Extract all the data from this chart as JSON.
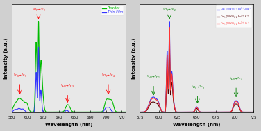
{
  "left_plot": {
    "xlim": [
      580,
      725
    ],
    "xlabel": "Wavelength (nm)",
    "xticks": [
      580,
      600,
      620,
      640,
      660,
      680,
      700,
      720
    ],
    "legend": [
      "Powder",
      "Thin Film"
    ],
    "legend_colors": [
      "#00bb00",
      "#3333ff"
    ],
    "bg_color": "#e8e8e8",
    "annot_color_left": "red",
    "annot_text_color": "green"
  },
  "right_plot": {
    "xlim": [
      575,
      725
    ],
    "xlabel": "Wavelength (nm)",
    "xticks": [
      575,
      600,
      625,
      650,
      675,
      700,
      725
    ],
    "legend": [
      "Ca$_{0.5}$Y(WO$_4$)$_2$:Eu$^{3+}$,Na$^+$",
      "Ca$_{0.5}$Y(WO$_4$)$_2$:Eu$^{3+}$,K$^+$",
      "Ca$_{0.5}$Y(WO$_4$)$_2$:Eu$^{3+}$,Li$^+$"
    ],
    "legend_colors": [
      "#3333ff",
      "#550000",
      "#ff3333"
    ],
    "bg_color": "#e8e8e8",
    "annot_color": "green"
  }
}
